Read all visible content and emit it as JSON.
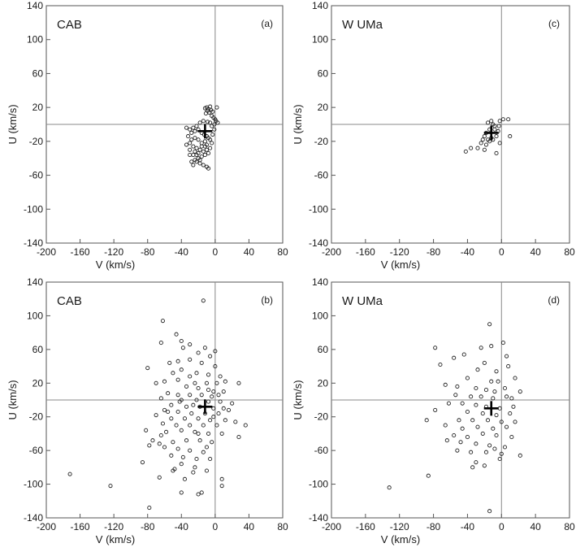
{
  "chart_data": [
    {
      "type": "scatter",
      "id": "a",
      "title": "CAB",
      "panel_label": "(a)",
      "xlabel": "V (km/s)",
      "ylabel": "U (km/s)",
      "xlim": [
        -200,
        80
      ],
      "ylim": [
        -140,
        140
      ],
      "xticks": [
        -200,
        -160,
        -120,
        -80,
        -40,
        0,
        40,
        80
      ],
      "yticks": [
        -140,
        -100,
        -60,
        -20,
        20,
        60,
        100,
        140
      ],
      "mean": [
        -12,
        -8
      ],
      "points": [
        [
          -10,
          20
        ],
        [
          -8,
          18
        ],
        [
          -6,
          21
        ],
        [
          -5,
          17
        ],
        [
          -9,
          16
        ],
        [
          -12,
          19
        ],
        [
          2,
          20
        ],
        [
          -3,
          15
        ],
        [
          -7,
          14
        ],
        [
          -11,
          13
        ],
        [
          -4,
          10
        ],
        [
          -2,
          8
        ],
        [
          0,
          6
        ],
        [
          1,
          4
        ],
        [
          3,
          2
        ],
        [
          -1,
          0
        ],
        [
          -6,
          2
        ],
        [
          -9,
          3
        ],
        [
          -14,
          4
        ],
        [
          -18,
          2
        ],
        [
          -22,
          -2
        ],
        [
          -26,
          -4
        ],
        [
          -30,
          -6
        ],
        [
          -28,
          -10
        ],
        [
          -24,
          -8
        ],
        [
          -20,
          -6
        ],
        [
          -16,
          -10
        ],
        [
          -13,
          -12
        ],
        [
          -10,
          -14
        ],
        [
          -8,
          -16
        ],
        [
          -6,
          -18
        ],
        [
          -4,
          -22
        ],
        [
          -12,
          -20
        ],
        [
          -16,
          -22
        ],
        [
          -20,
          -18
        ],
        [
          -24,
          -16
        ],
        [
          -28,
          -18
        ],
        [
          -30,
          -22
        ],
        [
          -26,
          -26
        ],
        [
          -22,
          -28
        ],
        [
          -18,
          -30
        ],
        [
          -14,
          -32
        ],
        [
          -10,
          -30
        ],
        [
          -8,
          -34
        ],
        [
          -12,
          -36
        ],
        [
          -16,
          -38
        ],
        [
          -20,
          -40
        ],
        [
          -24,
          -42
        ],
        [
          -22,
          -44
        ],
        [
          -18,
          -46
        ],
        [
          -14,
          -48
        ],
        [
          -28,
          -44
        ],
        [
          -30,
          -36
        ],
        [
          -26,
          -36
        ],
        [
          -20,
          -34
        ],
        [
          -16,
          -26
        ],
        [
          -12,
          -26
        ],
        [
          -6,
          -28
        ],
        [
          -3,
          -12
        ],
        [
          -1,
          -6
        ],
        [
          -4,
          -2
        ],
        [
          -34,
          -4
        ],
        [
          -32,
          -14
        ],
        [
          -34,
          -24
        ],
        [
          -30,
          -30
        ],
        [
          -24,
          -32
        ],
        [
          -10,
          -50
        ],
        [
          -8,
          -52
        ],
        [
          -26,
          -48
        ],
        [
          -18,
          -42
        ],
        [
          -22,
          -36
        ],
        [
          -10,
          -24
        ]
      ]
    },
    {
      "type": "scatter",
      "id": "c",
      "title": "W UMa",
      "panel_label": "(c)",
      "xlabel": "V (km/s)",
      "ylabel": "U (km/s)",
      "xlim": [
        -200,
        80
      ],
      "ylim": [
        -140,
        140
      ],
      "xticks": [
        -200,
        -160,
        -120,
        -80,
        -40,
        0,
        40,
        80
      ],
      "yticks": [
        -140,
        -100,
        -60,
        -20,
        20,
        60,
        100,
        140
      ],
      "mean": [
        -12,
        -10
      ],
      "points": [
        [
          -16,
          2
        ],
        [
          -12,
          4
        ],
        [
          -8,
          -2
        ],
        [
          -14,
          -6
        ],
        [
          -18,
          -10
        ],
        [
          -20,
          -14
        ],
        [
          -22,
          -18
        ],
        [
          -24,
          -22
        ],
        [
          -18,
          -24
        ],
        [
          -14,
          -20
        ],
        [
          -10,
          -18
        ],
        [
          -6,
          -14
        ],
        [
          -4,
          -8
        ],
        [
          -2,
          4
        ],
        [
          2,
          6
        ],
        [
          8,
          6
        ],
        [
          10,
          -14
        ],
        [
          -2,
          -22
        ],
        [
          -6,
          -34
        ],
        [
          -28,
          -28
        ],
        [
          -36,
          -28
        ],
        [
          -42,
          -32
        ],
        [
          -20,
          -30
        ],
        [
          -12,
          -16
        ],
        [
          -16,
          -18
        ],
        [
          -8,
          -6
        ],
        [
          -10,
          0
        ],
        [
          -3,
          -2
        ]
      ]
    },
    {
      "type": "scatter",
      "id": "b",
      "title": "CAB",
      "panel_label": "(b)",
      "xlabel": "V (km/s)",
      "ylabel": "U (km/s)",
      "xlim": [
        -200,
        80
      ],
      "ylim": [
        -140,
        140
      ],
      "xticks": [
        -200,
        -160,
        -120,
        -80,
        -40,
        0,
        40,
        80
      ],
      "yticks": [
        -140,
        -100,
        -60,
        -20,
        20,
        60,
        100,
        140
      ],
      "mean": [
        -12,
        -8
      ],
      "points": [
        [
          -14,
          118
        ],
        [
          -62,
          94
        ],
        [
          -46,
          78
        ],
        [
          -40,
          70
        ],
        [
          -64,
          68
        ],
        [
          -30,
          66
        ],
        [
          -38,
          62
        ],
        [
          -12,
          62
        ],
        [
          0,
          58
        ],
        [
          -20,
          56
        ],
        [
          -6,
          52
        ],
        [
          -30,
          48
        ],
        [
          -44,
          46
        ],
        [
          -54,
          44
        ],
        [
          -16,
          44
        ],
        [
          0,
          40
        ],
        [
          -80,
          38
        ],
        [
          -40,
          36
        ],
        [
          -50,
          32
        ],
        [
          -22,
          32
        ],
        [
          -8,
          30
        ],
        [
          6,
          28
        ],
        [
          -30,
          28
        ],
        [
          -44,
          24
        ],
        [
          -60,
          22
        ],
        [
          -70,
          20
        ],
        [
          -24,
          20
        ],
        [
          -10,
          20
        ],
        [
          2,
          20
        ],
        [
          12,
          22
        ],
        [
          28,
          20
        ],
        [
          -34,
          16
        ],
        [
          -20,
          14
        ],
        [
          -8,
          12
        ],
        [
          -2,
          10
        ],
        [
          10,
          10
        ],
        [
          -56,
          8
        ],
        [
          -44,
          6
        ],
        [
          -30,
          6
        ],
        [
          -16,
          6
        ],
        [
          -4,
          4
        ],
        [
          4,
          6
        ],
        [
          -64,
          2
        ],
        [
          -40,
          0
        ],
        [
          -22,
          0
        ],
        [
          -8,
          -2
        ],
        [
          6,
          -2
        ],
        [
          20,
          -4
        ],
        [
          -52,
          -6
        ],
        [
          -34,
          -8
        ],
        [
          -18,
          -8
        ],
        [
          -2,
          -10
        ],
        [
          10,
          -10
        ],
        [
          -60,
          -12
        ],
        [
          -44,
          -14
        ],
        [
          -28,
          -16
        ],
        [
          -12,
          -16
        ],
        [
          4,
          -16
        ],
        [
          -70,
          -18
        ],
        [
          -52,
          -22
        ],
        [
          -36,
          -22
        ],
        [
          -20,
          -22
        ],
        [
          -6,
          -24
        ],
        [
          12,
          -24
        ],
        [
          24,
          -26
        ],
        [
          -62,
          -28
        ],
        [
          -46,
          -30
        ],
        [
          -30,
          -30
        ],
        [
          -14,
          -30
        ],
        [
          2,
          -30
        ],
        [
          36,
          -30
        ],
        [
          -82,
          -36
        ],
        [
          -58,
          -38
        ],
        [
          -40,
          -36
        ],
        [
          -24,
          -38
        ],
        [
          -8,
          -40
        ],
        [
          8,
          -40
        ],
        [
          28,
          -44
        ],
        [
          -74,
          -48
        ],
        [
          -66,
          -52
        ],
        [
          -50,
          -50
        ],
        [
          -34,
          -48
        ],
        [
          -18,
          -48
        ],
        [
          -4,
          -50
        ],
        [
          -78,
          -54
        ],
        [
          -60,
          -56
        ],
        [
          -44,
          -58
        ],
        [
          -30,
          -60
        ],
        [
          -14,
          -62
        ],
        [
          -52,
          -66
        ],
        [
          -38,
          -68
        ],
        [
          -22,
          -70
        ],
        [
          -6,
          -70
        ],
        [
          -86,
          -74
        ],
        [
          -40,
          -76
        ],
        [
          -50,
          -84
        ],
        [
          -26,
          -86
        ],
        [
          -10,
          -84
        ],
        [
          -66,
          -92
        ],
        [
          8,
          -94
        ],
        [
          -172,
          -88
        ],
        [
          -124,
          -102
        ],
        [
          -40,
          -110
        ],
        [
          -20,
          -112
        ],
        [
          8,
          -102
        ],
        [
          -78,
          -128
        ],
        [
          -16,
          -110
        ],
        [
          -24,
          -80
        ],
        [
          -36,
          -94
        ],
        [
          -48,
          -82
        ],
        [
          -64,
          -42
        ],
        [
          -10,
          -56
        ],
        [
          -2,
          -20
        ],
        [
          16,
          -12
        ],
        [
          -26,
          -6
        ],
        [
          -42,
          -2
        ],
        [
          -56,
          -14
        ],
        [
          -20,
          -40
        ]
      ]
    },
    {
      "type": "scatter",
      "id": "d",
      "title": "W UMa",
      "panel_label": "(d)",
      "xlabel": "V (km/s)",
      "ylabel": "U (km/s)",
      "xlim": [
        -200,
        80
      ],
      "ylim": [
        -140,
        140
      ],
      "xticks": [
        -200,
        -160,
        -120,
        -80,
        -40,
        0,
        40,
        80
      ],
      "yticks": [
        -140,
        -100,
        -60,
        -20,
        20,
        60,
        100,
        140
      ],
      "mean": [
        -12,
        -10
      ],
      "points": [
        [
          -14,
          90
        ],
        [
          -12,
          64
        ],
        [
          2,
          68
        ],
        [
          -78,
          62
        ],
        [
          -24,
          62
        ],
        [
          -44,
          54
        ],
        [
          -56,
          50
        ],
        [
          6,
          52
        ],
        [
          -72,
          42
        ],
        [
          -20,
          44
        ],
        [
          8,
          40
        ],
        [
          -28,
          36
        ],
        [
          -6,
          34
        ],
        [
          -40,
          26
        ],
        [
          -12,
          22
        ],
        [
          -4,
          22
        ],
        [
          16,
          26
        ],
        [
          -66,
          18
        ],
        [
          -52,
          16
        ],
        [
          -30,
          14
        ],
        [
          -18,
          12
        ],
        [
          -8,
          10
        ],
        [
          4,
          14
        ],
        [
          22,
          10
        ],
        [
          -54,
          6
        ],
        [
          -36,
          4
        ],
        [
          -24,
          4
        ],
        [
          -10,
          2
        ],
        [
          6,
          4
        ],
        [
          12,
          2
        ],
        [
          -62,
          -4
        ],
        [
          -46,
          -4
        ],
        [
          -30,
          -6
        ],
        [
          -18,
          -8
        ],
        [
          -2,
          -10
        ],
        [
          14,
          -8
        ],
        [
          -78,
          -12
        ],
        [
          -40,
          -14
        ],
        [
          -22,
          -16
        ],
        [
          -6,
          -18
        ],
        [
          10,
          -16
        ],
        [
          -88,
          -24
        ],
        [
          -50,
          -24
        ],
        [
          -34,
          -24
        ],
        [
          -16,
          -24
        ],
        [
          0,
          -26
        ],
        [
          16,
          -26
        ],
        [
          -66,
          -30
        ],
        [
          -46,
          -34
        ],
        [
          -28,
          -32
        ],
        [
          -10,
          -34
        ],
        [
          6,
          -32
        ],
        [
          -56,
          -42
        ],
        [
          -40,
          -44
        ],
        [
          -22,
          -40
        ],
        [
          -6,
          -42
        ],
        [
          12,
          -44
        ],
        [
          -64,
          -48
        ],
        [
          -48,
          -50
        ],
        [
          -30,
          -52
        ],
        [
          -14,
          -54
        ],
        [
          4,
          -56
        ],
        [
          -52,
          -60
        ],
        [
          -36,
          -62
        ],
        [
          -18,
          -62
        ],
        [
          0,
          -64
        ],
        [
          22,
          -66
        ],
        [
          -30,
          -74
        ],
        [
          -20,
          -78
        ],
        [
          -2,
          -70
        ],
        [
          -86,
          -90
        ],
        [
          -132,
          -104
        ],
        [
          -14,
          -132
        ],
        [
          -34,
          -80
        ],
        [
          -8,
          -58
        ]
      ]
    }
  ]
}
